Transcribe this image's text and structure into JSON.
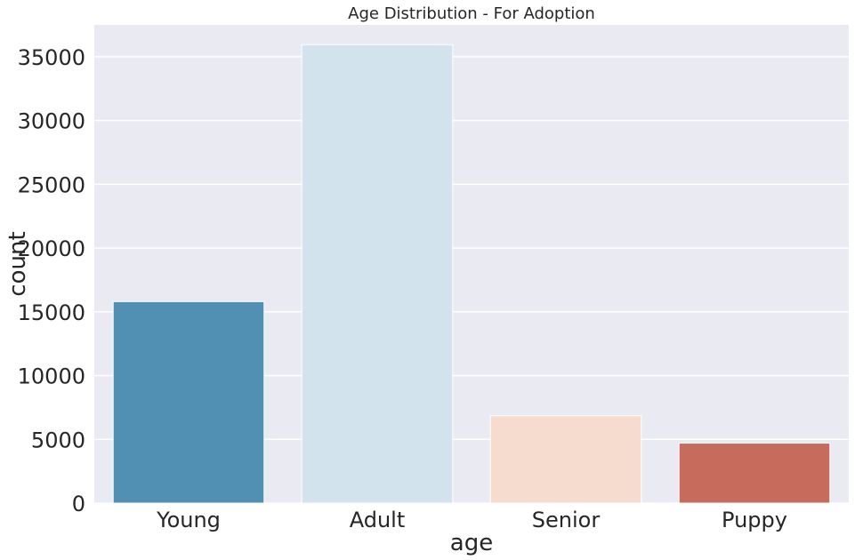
{
  "chart_data": {
    "type": "bar",
    "title": "Age Distribution - For Adoption",
    "xlabel": "age",
    "ylabel": "count",
    "categories": [
      "Young",
      "Adult",
      "Senior",
      "Puppy"
    ],
    "values": [
      15800,
      35950,
      6850,
      4700
    ],
    "colors": [
      "#5190b3",
      "#d3e3ed",
      "#f6dccf",
      "#c76b5d"
    ],
    "ylim": [
      0,
      37500
    ],
    "yticks": [
      0,
      5000,
      10000,
      15000,
      20000,
      25000,
      30000,
      35000
    ],
    "ytick_labels": [
      "0",
      "5000",
      "10000",
      "15000",
      "20000",
      "25000",
      "30000",
      "35000"
    ],
    "grid": true,
    "background": "#eaeaf2",
    "gridline_color": "#ffffff"
  }
}
